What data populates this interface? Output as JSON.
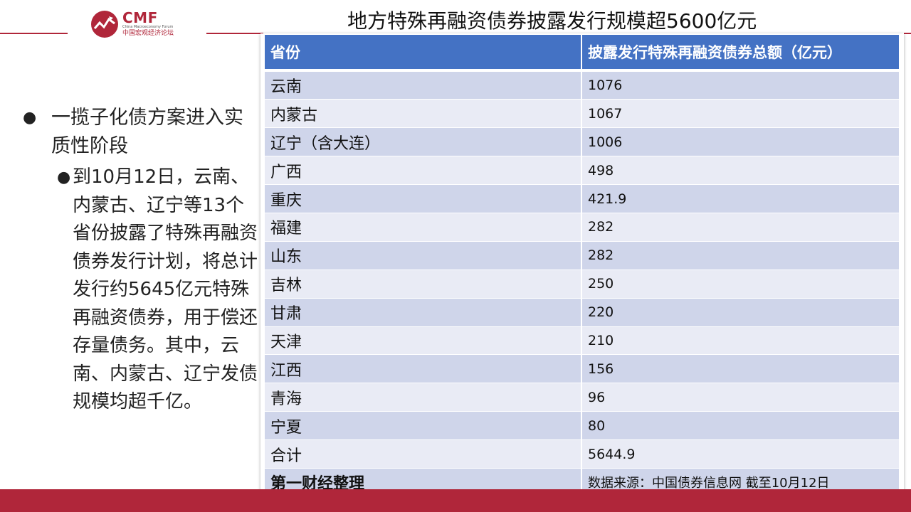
{
  "brand": {
    "name": "CMF",
    "subtitle": "China Macroeconomy Forum",
    "chinese_name": "中国宏观经济论坛",
    "color": "#b0263a"
  },
  "slide_title": "地方特殊再融资债券披露发行规模超5600亿元",
  "bullets": {
    "main": "一揽子化债方案进入实质性阶段",
    "sub": "到10月12日，云南、内蒙古、辽宁等13个省份披露了特殊再融资债券发行计划，将总计发行约5645亿元特殊再融资债券，用于偿还存量债务。其中，云南、内蒙古、辽宁发债规模均超千亿。"
  },
  "table": {
    "header_color": "#4472c4",
    "headers": [
      "省份",
      "披露发行特殊再融资债券总额（亿元）"
    ],
    "rows": [
      [
        "云南",
        "1076"
      ],
      [
        "内蒙古",
        "1067"
      ],
      [
        "辽宁（含大连）",
        "1006"
      ],
      [
        "广西",
        "498"
      ],
      [
        "重庆",
        "421.9"
      ],
      [
        "福建",
        "282"
      ],
      [
        "山东",
        "282"
      ],
      [
        "吉林",
        "250"
      ],
      [
        "甘肃",
        "220"
      ],
      [
        "天津",
        "210"
      ],
      [
        "江西",
        "156"
      ],
      [
        "青海",
        "96"
      ],
      [
        "宁夏",
        "80"
      ],
      [
        "合计",
        "5644.9"
      ]
    ],
    "footer": [
      "第一财经整理",
      "数据来源：中国债券信息网 截至10月12日"
    ]
  }
}
